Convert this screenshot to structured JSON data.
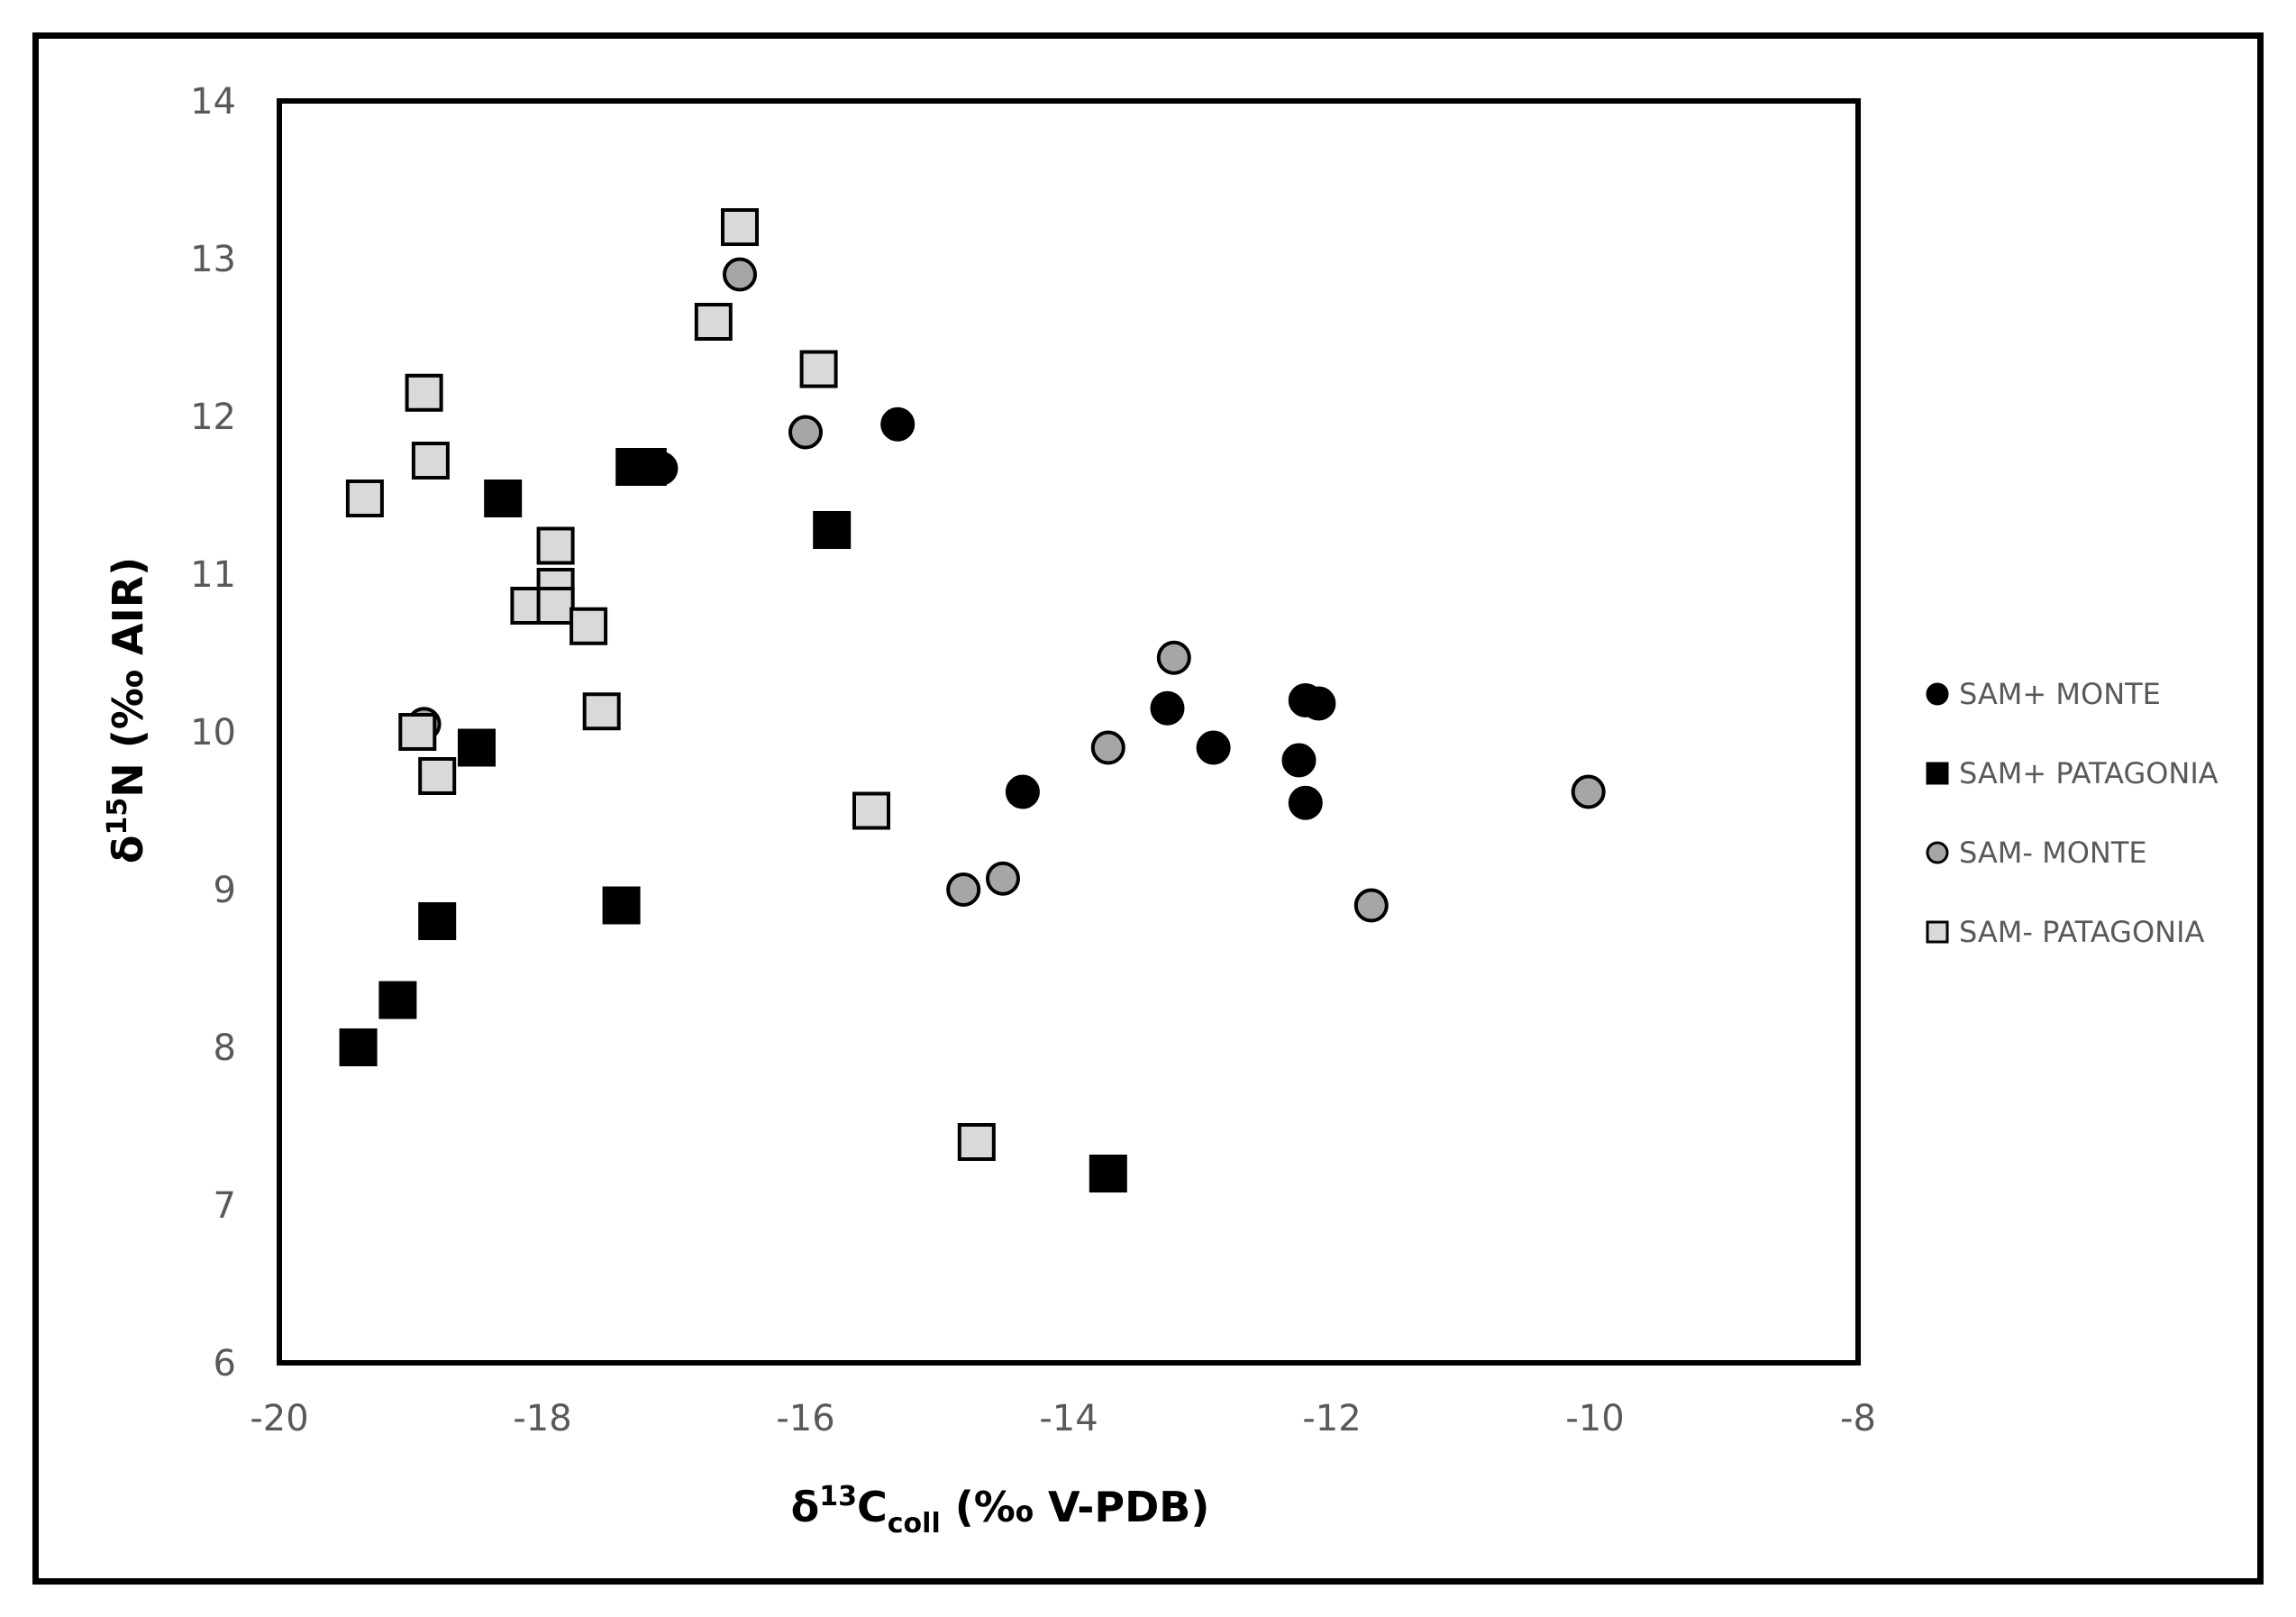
{
  "chart_data": {
    "type": "scatter",
    "title": "",
    "xlabel": {
      "prefix": "δ",
      "sup": "13",
      "main": "C",
      "sub": "coll",
      "suffix": " (‰ V-PDB)"
    },
    "ylabel": {
      "prefix": "δ",
      "sup": "15",
      "main": "N",
      "suffix": " (‰ AIR)"
    },
    "xlim": [
      -20,
      -8
    ],
    "ylim": [
      6,
      14
    ],
    "xticks": [
      {
        "value": -20,
        "label": "-20"
      },
      {
        "value": -18,
        "label": "-18"
      },
      {
        "value": -16,
        "label": "-16"
      },
      {
        "value": -14,
        "label": "-14"
      },
      {
        "value": -12,
        "label": "-12"
      },
      {
        "value": -10,
        "label": "-10"
      },
      {
        "value": -8,
        "label": "-8"
      }
    ],
    "yticks": [
      {
        "value": 6,
        "label": "6"
      },
      {
        "value": 7,
        "label": "7"
      },
      {
        "value": 8,
        "label": "8"
      },
      {
        "value": 9,
        "label": "9"
      },
      {
        "value": 10,
        "label": "10"
      },
      {
        "value": 11,
        "label": "11"
      },
      {
        "value": 12,
        "label": "12"
      },
      {
        "value": 13,
        "label": "13"
      },
      {
        "value": 14,
        "label": "14"
      }
    ],
    "grid": false,
    "legend_position": "right",
    "series": [
      {
        "name": "SAM+ MONTE",
        "marker": "circle",
        "fill": "#000000",
        "stroke": "#000000",
        "points": [
          {
            "x": -15.3,
            "y": 11.95
          },
          {
            "x": -17.1,
            "y": 11.67
          },
          {
            "x": -14.35,
            "y": 9.62
          },
          {
            "x": -13.25,
            "y": 10.15
          },
          {
            "x": -12.9,
            "y": 9.9
          },
          {
            "x": -12.25,
            "y": 9.82
          },
          {
            "x": -12.2,
            "y": 9.55
          },
          {
            "x": -12.2,
            "y": 10.2
          },
          {
            "x": -12.1,
            "y": 10.18
          }
        ]
      },
      {
        "name": "SAM+ PATAGONIA",
        "marker": "square",
        "fill": "#000000",
        "stroke": "#000000",
        "points": [
          {
            "x": -19.4,
            "y": 8.0
          },
          {
            "x": -19.1,
            "y": 8.3
          },
          {
            "x": -18.8,
            "y": 8.8
          },
          {
            "x": -18.3,
            "y": 11.48
          },
          {
            "x": -18.5,
            "y": 9.9
          },
          {
            "x": -17.4,
            "y": 8.9
          },
          {
            "x": -17.3,
            "y": 11.68
          },
          {
            "x": -17.2,
            "y": 11.68
          },
          {
            "x": -15.8,
            "y": 11.28
          },
          {
            "x": -13.7,
            "y": 7.2
          }
        ]
      },
      {
        "name": "SAM- MONTE",
        "marker": "circle",
        "fill": "#a6a6a6",
        "stroke": "#000000",
        "points": [
          {
            "x": -18.9,
            "y": 10.05
          },
          {
            "x": -16.5,
            "y": 12.9
          },
          {
            "x": -16.0,
            "y": 11.9
          },
          {
            "x": -13.2,
            "y": 10.47
          },
          {
            "x": -13.7,
            "y": 9.9
          },
          {
            "x": -14.5,
            "y": 9.07
          },
          {
            "x": -14.8,
            "y": 9.0
          },
          {
            "x": -11.7,
            "y": 8.9
          },
          {
            "x": -10.05,
            "y": 9.62
          }
        ]
      },
      {
        "name": "SAM- PATAGONIA",
        "marker": "square",
        "fill": "#d9d9d9",
        "stroke": "#000000",
        "points": [
          {
            "x": -19.35,
            "y": 11.48
          },
          {
            "x": -18.9,
            "y": 12.15
          },
          {
            "x": -18.85,
            "y": 11.72
          },
          {
            "x": -18.95,
            "y": 10.0
          },
          {
            "x": -18.8,
            "y": 9.72
          },
          {
            "x": -17.9,
            "y": 11.18
          },
          {
            "x": -17.9,
            "y": 10.92
          },
          {
            "x": -18.1,
            "y": 10.8
          },
          {
            "x": -17.9,
            "y": 10.8
          },
          {
            "x": -17.65,
            "y": 10.67
          },
          {
            "x": -17.55,
            "y": 10.13
          },
          {
            "x": -16.5,
            "y": 13.2
          },
          {
            "x": -16.7,
            "y": 12.6
          },
          {
            "x": -15.9,
            "y": 12.3
          },
          {
            "x": -15.5,
            "y": 9.5
          },
          {
            "x": -14.7,
            "y": 7.4
          }
        ]
      }
    ]
  }
}
